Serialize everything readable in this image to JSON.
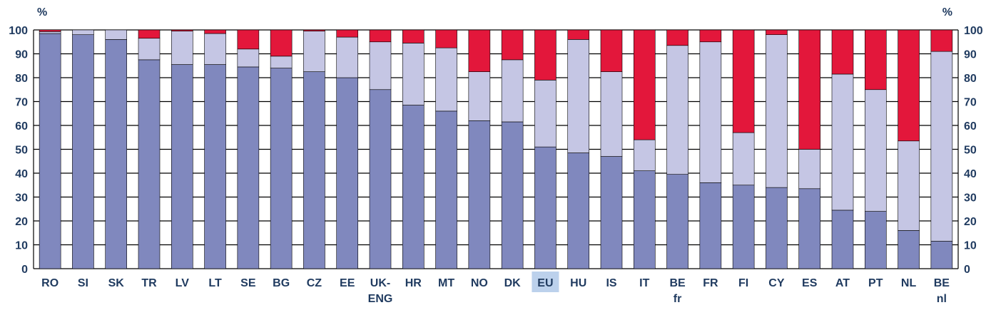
{
  "chart_data": {
    "type": "bar",
    "stacked": true,
    "unit_label": "%",
    "categories": [
      [
        "RO"
      ],
      [
        "SI"
      ],
      [
        "SK"
      ],
      [
        "TR"
      ],
      [
        "LV"
      ],
      [
        "LT"
      ],
      [
        "SE"
      ],
      [
        "BG"
      ],
      [
        "CZ"
      ],
      [
        "EE"
      ],
      [
        "UK-",
        "ENG"
      ],
      [
        "HR"
      ],
      [
        "MT"
      ],
      [
        "NO"
      ],
      [
        "DK"
      ],
      [
        "EU"
      ],
      [
        "HU"
      ],
      [
        "IS"
      ],
      [
        "IT"
      ],
      [
        "BE",
        "fr"
      ],
      [
        "FR"
      ],
      [
        "FI"
      ],
      [
        "CY"
      ],
      [
        "ES"
      ],
      [
        "AT"
      ],
      [
        "PT"
      ],
      [
        "NL"
      ],
      [
        "BE",
        "nl"
      ]
    ],
    "highlight_category_index": 15,
    "highlight_color": "#bcd1ec",
    "ylim": [
      0,
      100
    ],
    "yticks": [
      0,
      10,
      20,
      30,
      40,
      50,
      60,
      70,
      80,
      90,
      100
    ],
    "grid": true,
    "series": [
      {
        "color": "#8088be",
        "values": [
          98.5,
          98,
          96,
          87.5,
          85.5,
          85.5,
          84.5,
          84,
          82.5,
          80,
          75,
          68.5,
          66,
          62,
          61.5,
          51,
          48.5,
          47,
          41,
          39.5,
          36,
          35,
          34,
          33.5,
          24.5,
          24,
          16,
          11.5
        ]
      },
      {
        "color": "#c5c6e4",
        "values": [
          0.8,
          2,
          4,
          9,
          14,
          13,
          7.5,
          5,
          17,
          17,
          20,
          26,
          26.5,
          20.5,
          26,
          28,
          47.5,
          35.5,
          13,
          54,
          59,
          22,
          64,
          16.5,
          57,
          51,
          37.5,
          79.5
        ]
      },
      {
        "color": "#e3173b",
        "values": [
          0.7,
          0,
          0,
          3.5,
          0.5,
          1.5,
          8,
          11,
          0.5,
          3,
          5,
          5.5,
          7.5,
          17.5,
          12.5,
          21,
          4,
          17.5,
          46,
          6.5,
          5,
          43,
          2,
          50,
          18.5,
          25,
          46.5,
          9
        ]
      }
    ]
  }
}
